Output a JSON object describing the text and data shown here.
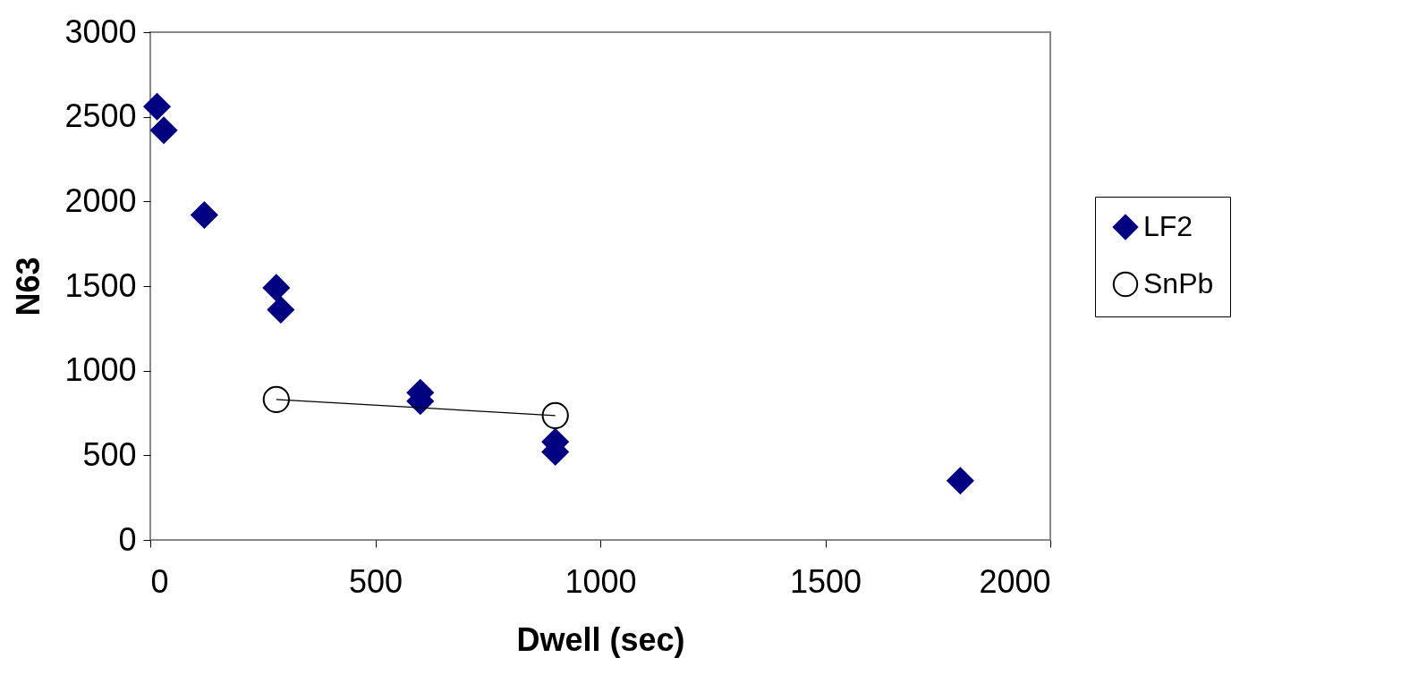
{
  "chart_data": {
    "type": "scatter",
    "xlabel": "Dwell (sec)",
    "ylabel": "N63",
    "xlim": [
      0,
      2000
    ],
    "xticks": [
      0,
      500,
      1000,
      1500,
      2000
    ],
    "ylim": [
      0,
      3000
    ],
    "yticks": [
      0,
      500,
      1000,
      1500,
      2000,
      2500,
      3000
    ],
    "legend": "right",
    "grid": false,
    "series": [
      {
        "name": "LF2",
        "type": "scatter",
        "marker": "diamond",
        "color": "#000080",
        "x": [
          15,
          30,
          120,
          280,
          290,
          600,
          600,
          900,
          900,
          1800
        ],
        "values": [
          2560,
          2420,
          1920,
          1490,
          1360,
          870,
          820,
          580,
          520,
          350
        ]
      },
      {
        "name": "SnPb",
        "type": "line",
        "marker": "circle",
        "color": "#000000",
        "x": [
          280,
          900
        ],
        "values": [
          830,
          735
        ]
      }
    ]
  }
}
